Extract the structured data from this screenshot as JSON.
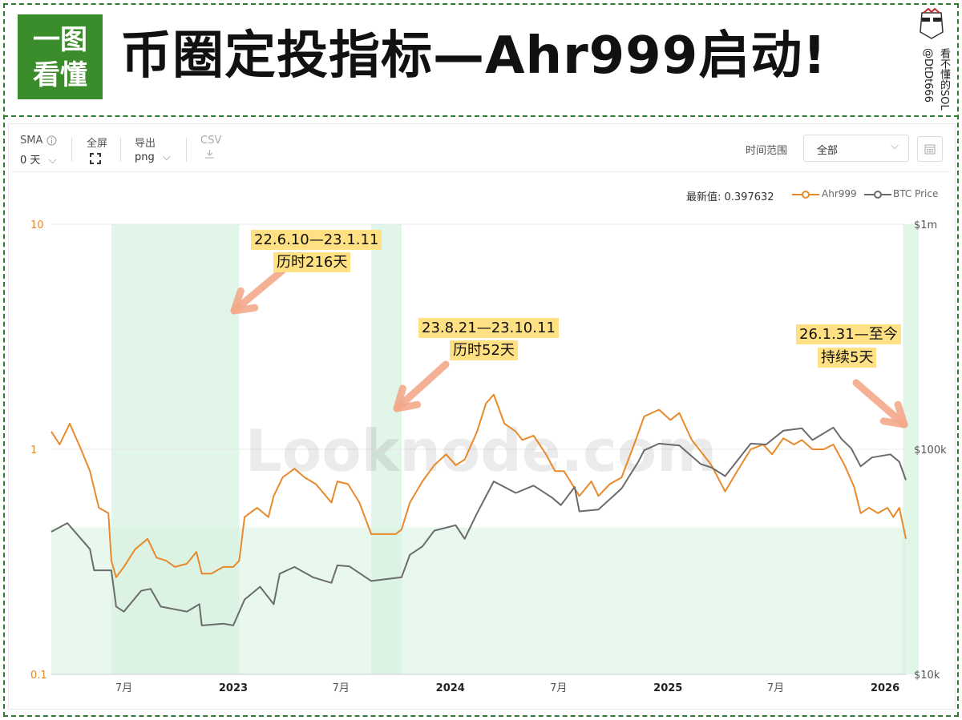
{
  "header": {
    "logo_line1": "一图",
    "logo_line2": "看懂",
    "title": "币圈定投指标—Ahr999启动!",
    "author_line1": "看不懂的SOL",
    "author_line2": "@DtDt666",
    "avatar_icon": "cartoon-avatar-icon"
  },
  "toolbar": {
    "sma_label": "SMA",
    "sma_value": "0 天",
    "fullscreen_label": "全屏",
    "export_label": "导出",
    "export_value": "png",
    "csv_label": "CSV",
    "range_label": "时间范围",
    "range_value": "全部"
  },
  "legend": {
    "latest_label": "最新值: 0.397632",
    "series1": "Ahr999",
    "series2": "BTC Price"
  },
  "watermark": "Looknode.com",
  "annotations": [
    {
      "line1": "22.6.10—23.1.11",
      "line2": "历时216天"
    },
    {
      "line1": "23.8.21—23.10.11",
      "line2": "历时52天"
    },
    {
      "line1": "26.1.31—至今",
      "line2": "持续5天"
    }
  ],
  "colors": {
    "ahr999": "#e8892b",
    "btc": "#6b6b6b",
    "zone": "#d7f2e0",
    "border": "#2e7d32",
    "highlight": "#ffe082"
  },
  "chart_data": {
    "type": "line",
    "y_left": {
      "scale": "log",
      "ylim": [
        0.1,
        10
      ],
      "ticks": [
        "10",
        "1",
        "0.1"
      ]
    },
    "y_right": {
      "scale": "log",
      "ylim": [
        10000,
        1000000
      ],
      "ticks": [
        "$1m",
        "$100k",
        "$10k"
      ]
    },
    "x_ticks": [
      "7月",
      "2023",
      "7月",
      "2024",
      "7月",
      "2025",
      "7月",
      "2026"
    ],
    "x_tick_dates": [
      "2022-07-01",
      "2023-01-01",
      "2023-07-01",
      "2024-01-01",
      "2024-07-01",
      "2025-01-01",
      "2025-07-01",
      "2026-01-01"
    ],
    "x_range": [
      "2022-03-01",
      "2026-02-05"
    ],
    "threshold": 0.45,
    "zones": [
      {
        "start": "2022-06-10",
        "end": "2023-01-11"
      },
      {
        "start": "2023-08-21",
        "end": "2023-10-11"
      },
      {
        "start": "2026-01-31",
        "end": "2026-02-05"
      }
    ],
    "series": [
      {
        "name": "Ahr999",
        "axis": "left",
        "x": [
          "2022-03-01",
          "2022-03-15",
          "2022-04-01",
          "2022-04-20",
          "2022-05-05",
          "2022-05-20",
          "2022-06-05",
          "2022-06-10",
          "2022-06-18",
          "2022-07-01",
          "2022-07-20",
          "2022-08-10",
          "2022-08-25",
          "2022-09-10",
          "2022-09-25",
          "2022-10-15",
          "2022-10-31",
          "2022-11-09",
          "2022-11-25",
          "2022-12-15",
          "2023-01-01",
          "2023-01-11",
          "2023-01-20",
          "2023-02-10",
          "2023-03-01",
          "2023-03-10",
          "2023-03-25",
          "2023-04-14",
          "2023-05-01",
          "2023-05-20",
          "2023-06-15",
          "2023-06-25",
          "2023-07-13",
          "2023-08-01",
          "2023-08-21",
          "2023-09-10",
          "2023-10-01",
          "2023-10-11",
          "2023-10-25",
          "2023-11-15",
          "2023-12-05",
          "2023-12-25",
          "2024-01-10",
          "2024-01-25",
          "2024-02-15",
          "2024-03-01",
          "2024-03-14",
          "2024-04-01",
          "2024-04-20",
          "2024-05-01",
          "2024-05-20",
          "2024-06-10",
          "2024-06-25",
          "2024-07-10",
          "2024-08-05",
          "2024-08-25",
          "2024-09-06",
          "2024-09-25",
          "2024-10-15",
          "2024-11-05",
          "2024-11-22",
          "2024-12-17",
          "2025-01-05",
          "2025-01-20",
          "2025-02-10",
          "2025-03-01",
          "2025-03-15",
          "2025-04-07",
          "2025-04-25",
          "2025-05-20",
          "2025-06-10",
          "2025-06-25",
          "2025-07-14",
          "2025-08-01",
          "2025-08-14",
          "2025-09-01",
          "2025-09-20",
          "2025-10-06",
          "2025-10-25",
          "2025-11-10",
          "2025-11-21",
          "2025-12-05",
          "2025-12-20",
          "2026-01-05",
          "2026-01-15",
          "2026-01-25",
          "2026-02-05"
        ],
        "y": [
          1.2,
          1.05,
          1.3,
          1.0,
          0.8,
          0.55,
          0.52,
          0.32,
          0.27,
          0.3,
          0.36,
          0.4,
          0.33,
          0.32,
          0.3,
          0.31,
          0.35,
          0.28,
          0.28,
          0.3,
          0.3,
          0.32,
          0.5,
          0.55,
          0.5,
          0.62,
          0.75,
          0.82,
          0.75,
          0.7,
          0.58,
          0.72,
          0.7,
          0.58,
          0.42,
          0.42,
          0.42,
          0.44,
          0.58,
          0.72,
          0.85,
          0.95,
          0.85,
          0.9,
          1.2,
          1.6,
          1.75,
          1.3,
          1.2,
          1.1,
          1.15,
          0.95,
          0.8,
          0.8,
          0.62,
          0.72,
          0.62,
          0.7,
          0.75,
          1.05,
          1.4,
          1.5,
          1.35,
          1.45,
          1.1,
          0.95,
          0.85,
          0.65,
          0.78,
          1.0,
          1.05,
          0.95,
          1.12,
          1.05,
          1.1,
          1.0,
          1.0,
          1.05,
          0.85,
          0.68,
          0.52,
          0.55,
          0.52,
          0.55,
          0.5,
          0.55,
          0.4
        ]
      },
      {
        "name": "BTC Price",
        "axis": "right",
        "x": [
          "2022-03-01",
          "2022-03-28",
          "2022-04-20",
          "2022-05-05",
          "2022-05-12",
          "2022-06-10",
          "2022-06-18",
          "2022-07-01",
          "2022-07-30",
          "2022-08-15",
          "2022-09-01",
          "2022-10-15",
          "2022-11-05",
          "2022-11-09",
          "2022-12-15",
          "2023-01-01",
          "2023-01-20",
          "2023-02-15",
          "2023-03-10",
          "2023-03-20",
          "2023-04-14",
          "2023-05-15",
          "2023-06-15",
          "2023-06-25",
          "2023-07-15",
          "2023-08-21",
          "2023-09-15",
          "2023-10-11",
          "2023-10-25",
          "2023-11-15",
          "2023-12-05",
          "2024-01-10",
          "2024-01-25",
          "2024-02-15",
          "2024-03-14",
          "2024-04-20",
          "2024-05-20",
          "2024-06-20",
          "2024-07-05",
          "2024-07-28",
          "2024-08-05",
          "2024-09-06",
          "2024-10-15",
          "2024-11-12",
          "2024-11-22",
          "2024-12-17",
          "2025-01-20",
          "2025-02-25",
          "2025-03-15",
          "2025-04-07",
          "2025-05-20",
          "2025-06-15",
          "2025-07-14",
          "2025-08-14",
          "2025-09-01",
          "2025-10-06",
          "2025-10-20",
          "2025-11-05",
          "2025-11-21",
          "2025-12-10",
          "2026-01-10",
          "2026-01-25",
          "2026-02-05"
        ],
        "y": [
          43000,
          47000,
          40000,
          36000,
          29000,
          29000,
          20000,
          19000,
          23500,
          24000,
          20000,
          19000,
          20500,
          16500,
          16800,
          16500,
          21500,
          24500,
          20500,
          28000,
          30000,
          27000,
          25500,
          30500,
          30200,
          26000,
          26500,
          27000,
          34000,
          37000,
          43500,
          46000,
          40000,
          52000,
          72000,
          64000,
          69000,
          61000,
          56500,
          68000,
          53000,
          54000,
          67000,
          88000,
          99000,
          106000,
          104000,
          86000,
          83000,
          76000,
          106000,
          105000,
          121000,
          124000,
          110000,
          125000,
          111000,
          101000,
          84000,
          92000,
          95000,
          88000,
          73000
        ]
      }
    ]
  }
}
